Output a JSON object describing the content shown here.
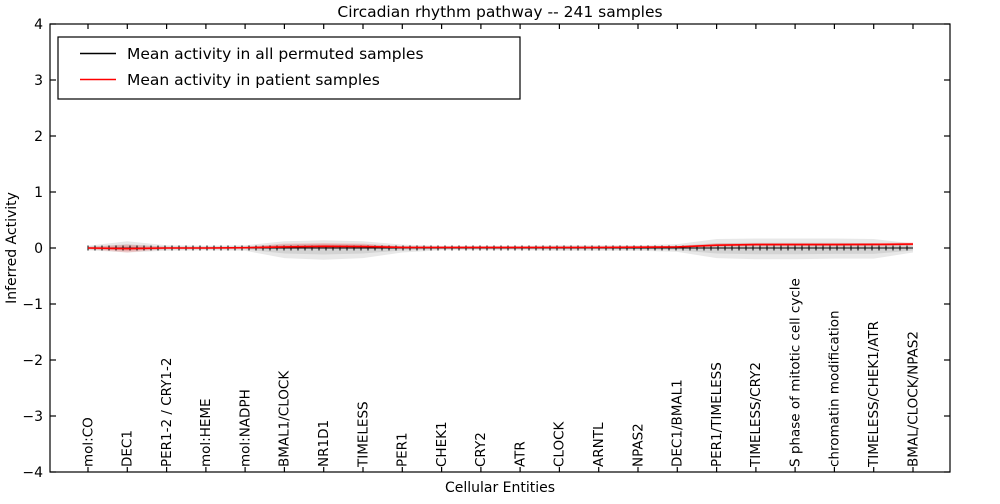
{
  "title": "Circadian rhythm pathway -- 241 samples",
  "axes": {
    "xlabel": "Cellular Entities",
    "ylabel": "Inferred Activity"
  },
  "legend": {
    "position": "upper left",
    "items": [
      {
        "label": "Mean activity in all permuted samples",
        "color": "#000000"
      },
      {
        "label": "Mean activity in patient samples",
        "color": "#ff0000"
      }
    ]
  },
  "chart_data": {
    "type": "line",
    "title": "Circadian rhythm pathway -- 241 samples",
    "xlabel": "Cellular Entities",
    "ylabel": "Inferred Activity",
    "ylim": [
      -4,
      4
    ],
    "yticks": [
      -4,
      -3,
      -2,
      -1,
      0,
      1,
      2,
      3,
      4
    ],
    "grid": false,
    "legend_position": "upper left",
    "band_layers": [
      1.0,
      0.55
    ],
    "categories": [
      "mol:CO",
      "DEC1",
      "PER1-2 / CRY1-2",
      "mol:HEME",
      "mol:NADPH",
      "BMAL1/CLOCK",
      "NR1D1",
      "TIMELESS",
      "PER1",
      "CHEK1",
      "CRY2",
      "ATR",
      "CLOCK",
      "ARNTL",
      "NPAS2",
      "DEC1/BMAL1",
      "PER1/TIMELESS",
      "TIMELESS/CRY2",
      "S phase of mitotic cell cycle",
      "chromatin modification",
      "TIMELESS/CHEK1/ATR",
      "BMAL/CLOCK/NPAS2"
    ],
    "series": [
      {
        "name": "Mean activity in all permuted samples",
        "color": "#000000",
        "line_width": 1,
        "marker": "|",
        "band_color": "rgba(0,0,0,0.09)",
        "values": [
          0,
          0,
          0,
          0,
          0,
          0,
          0,
          0,
          0,
          0,
          0,
          0,
          0,
          0,
          0,
          0,
          0,
          0,
          0,
          0,
          0,
          0
        ],
        "band_upper": [
          0.04,
          0.12,
          0.05,
          0.04,
          0.05,
          0.12,
          0.14,
          0.12,
          0.06,
          0.04,
          0.04,
          0.04,
          0.05,
          0.05,
          0.05,
          0.07,
          0.16,
          0.17,
          0.17,
          0.17,
          0.16,
          0.08
        ],
        "band_lower": [
          -0.04,
          -0.08,
          -0.05,
          -0.04,
          -0.05,
          -0.18,
          -0.21,
          -0.18,
          -0.08,
          -0.04,
          -0.04,
          -0.04,
          -0.05,
          -0.05,
          -0.05,
          -0.07,
          -0.18,
          -0.2,
          -0.2,
          -0.19,
          -0.19,
          -0.08
        ]
      },
      {
        "name": "Mean activity in patient samples",
        "color": "#ff0000",
        "line_width": 1.6,
        "marker": null,
        "band_color": "rgba(255,0,0,0.14)",
        "values": [
          0.0,
          -0.01,
          0.0,
          0.0,
          0.005,
          0.02,
          0.03,
          0.025,
          0.01,
          0.01,
          0.01,
          0.01,
          0.01,
          0.01,
          0.015,
          0.02,
          0.05,
          0.06,
          0.06,
          0.06,
          0.065,
          0.07
        ],
        "band_upper": [
          0.02,
          0.06,
          0.02,
          0.02,
          0.02,
          0.08,
          0.09,
          0.08,
          0.03,
          0.02,
          0.02,
          0.02,
          0.02,
          0.02,
          0.025,
          0.03,
          0.08,
          0.09,
          0.09,
          0.09,
          0.09,
          0.1
        ],
        "band_lower": [
          -0.02,
          -0.08,
          -0.02,
          -0.02,
          -0.01,
          -0.01,
          -0.01,
          -0.01,
          -0.01,
          0.0,
          0.0,
          0.0,
          0.0,
          0.0,
          0.0,
          0.005,
          0.02,
          0.03,
          0.03,
          0.03,
          0.03,
          0.04
        ]
      }
    ]
  }
}
